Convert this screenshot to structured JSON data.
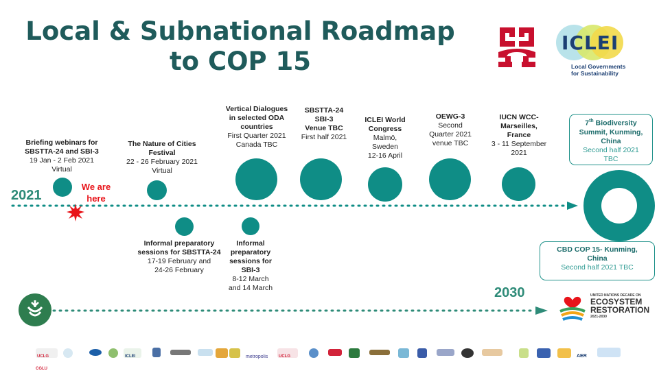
{
  "title": {
    "line1": "Local & Subnational Roadmap",
    "line2": "to COP 15"
  },
  "logos": {
    "iclei_word": "ICLEI",
    "iclei_tagline_1": "Local Governments",
    "iclei_tagline_2": "for Sustainability",
    "un_decade_top": "UNITED NATIONS DECADE ON",
    "un_decade_1": "ECOSYSTEM",
    "un_decade_2": "RESTORATION",
    "un_decade_years": "2021-2030",
    "metropolis": "metropolis"
  },
  "timeline": {
    "year_start": "2021",
    "year_end": "2030",
    "we_are_here_1": "We are",
    "we_are_here_2": "here"
  },
  "events_top": [
    {
      "title_1": "Briefing webinars for",
      "title_2": "SBSTTA-24 and SBI-3",
      "line_1": "19 Jan - 2 Feb 2021",
      "line_2": "Virtual"
    },
    {
      "title_1": "The Nature of Cities",
      "title_2": "Festival",
      "line_1": "22 - 26 February 2021",
      "line_2": "Virtual"
    },
    {
      "title_1": "Vertical  Dialogues",
      "title_2": "in selected ODA",
      "title_3": "countries",
      "line_1": "First Quarter 2021",
      "line_2": "Canada TBC"
    },
    {
      "title_1": "SBSTTA-24",
      "title_2": "SBI-3",
      "title_3": "Venue TBC",
      "line_1": "First half  2021"
    },
    {
      "title_1": "ICLEI World",
      "title_2": "Congress",
      "line_1": "Malmö,",
      "line_2": "Sweden",
      "line_3": "12-16 April"
    },
    {
      "title_1": "OEWG-3",
      "line_1": "Second",
      "line_2": "Quarter 2021",
      "line_3": "venue TBC"
    },
    {
      "title_1": "IUCN WCC-",
      "title_2": "Marseilles,",
      "title_3": "France",
      "line_1": "3 - 11 September",
      "line_2": "2021"
    }
  ],
  "events_bottom": [
    {
      "title_1": "Informal preparatory",
      "title_2": "sessions for SBSTTA-24",
      "line_1": "17-19 February and",
      "line_2": "24-26 February"
    },
    {
      "title_1": "Informal",
      "title_2": "preparatory",
      "title_3": "sessions for",
      "title_4": "SBI-3",
      "line_1": "8-12 March",
      "line_2": "and 14 March"
    }
  ],
  "boxes": {
    "biodiversity_summit": {
      "title_sup": "th",
      "title_num": "7",
      "title_1": " Biodiversity",
      "title_2": "Summit, Kunming,",
      "title_3": "China",
      "line_1": "Second half 2021",
      "line_2": "TBC"
    },
    "cop15": {
      "title_1": "CBD COP 15- Kunming,",
      "title_2": "China",
      "line_1": "Second half  2021 TBC"
    }
  },
  "partner_logo_labels": [
    "UCLG CGLU",
    "",
    "",
    "",
    "ICLEI",
    "",
    "",
    "",
    "",
    "",
    "metropolis",
    "UCLG",
    "",
    "",
    "",
    "",
    "",
    "",
    "",
    "",
    "",
    "",
    "",
    "",
    "",
    "",
    "",
    "AER",
    ""
  ],
  "colors": {
    "teal": "#0f8d86",
    "dark_teal": "#1f5b5b",
    "green": "#2e8b78",
    "red": "#e8141a"
  }
}
